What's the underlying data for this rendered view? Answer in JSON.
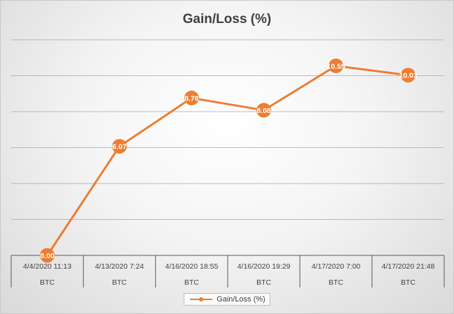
{
  "chart_data": {
    "type": "line",
    "title": "Gain/Loss (%)",
    "categories": [
      "4/4/2020 11:13",
      "4/13/2020 7:24",
      "4/16/2020 18:55",
      "4/16/2020 19:29",
      "4/17/2020 7:00",
      "4/17/2020 21:48"
    ],
    "group_label": "BTC",
    "series": [
      {
        "name": "Gain/Loss (%)",
        "values": [
          0.0,
          6.07,
          8.76,
          8.08,
          10.55,
          10.03
        ],
        "data_labels": [
          "0.00",
          "6.07",
          "8.76",
          "8.08",
          "10.55",
          "10.03"
        ],
        "color": "#ed7d31"
      }
    ],
    "ylim": [
      0,
      12
    ],
    "grid": true,
    "legend": "bottom"
  }
}
